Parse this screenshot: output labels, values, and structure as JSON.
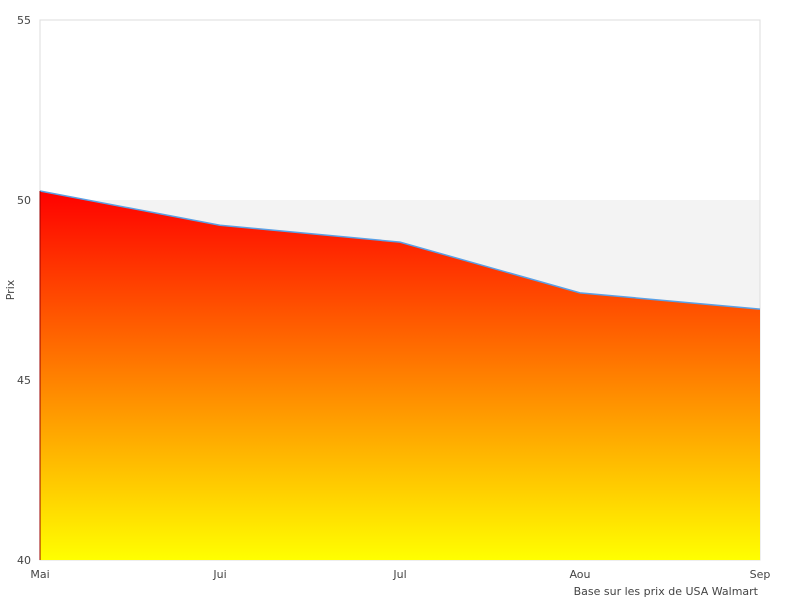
{
  "chart_data": {
    "type": "area",
    "title": "",
    "xlabel": "Base sur les prix de USA Walmart",
    "ylabel": "Prix",
    "categories": [
      "Mai",
      "Jui",
      "Jul",
      "Aou",
      "Sep"
    ],
    "values": [
      50.25,
      49.3,
      48.83,
      47.42,
      46.97
    ],
    "ylim": [
      40,
      55
    ],
    "yticks": [
      "40",
      "45",
      "50",
      "55"
    ],
    "grid": "alternating horizontal bands",
    "legend": "none",
    "colors": {
      "fill_top": "#ff0000",
      "fill_bottom": "#ffff00",
      "line": "#5aa0e6",
      "band": "#f3f3f3",
      "border": "#dddddd"
    }
  }
}
